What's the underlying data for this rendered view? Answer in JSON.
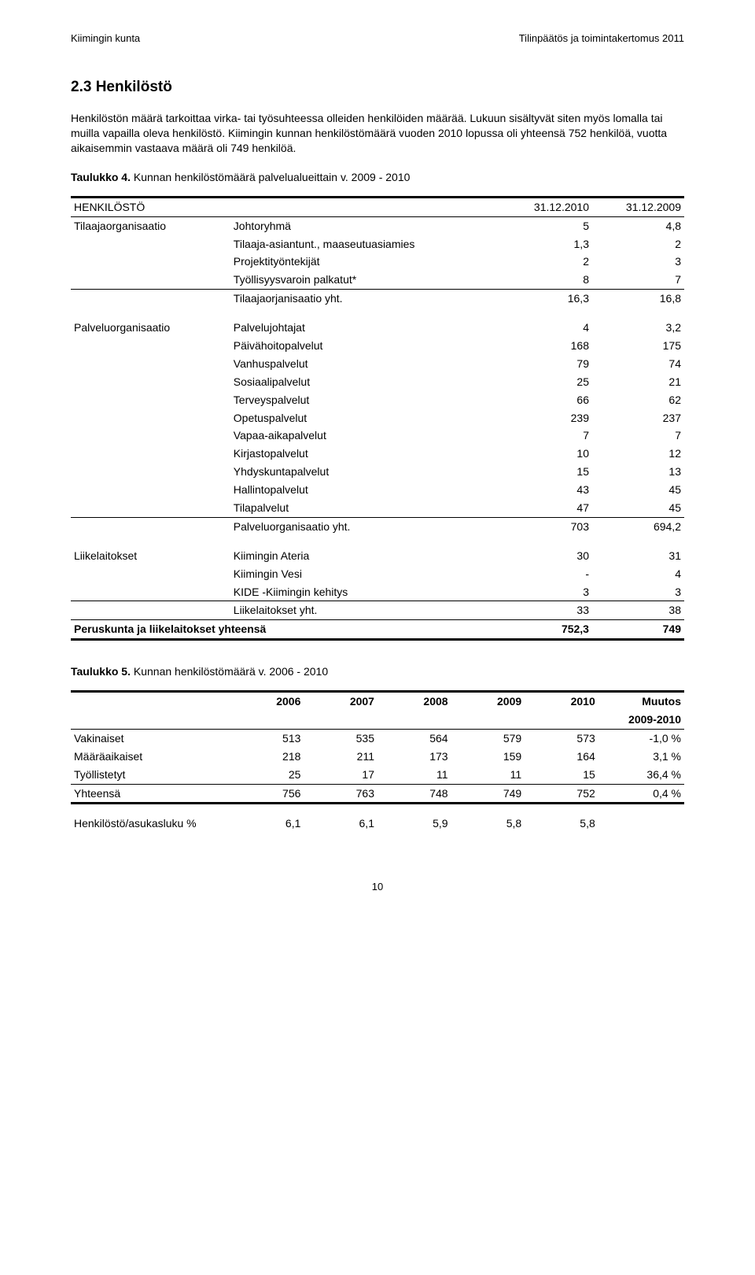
{
  "header": {
    "left": "Kiimingin kunta",
    "right": "Tilinpäätös ja toimintakertomus 2011"
  },
  "heading": "2.3 Henkilöstö",
  "paragraph": "Henkilöstön määrä tarkoittaa virka- tai työsuhteessa olleiden henkilöiden määrää. Lukuun sisältyvät siten myös lomalla tai muilla vapailla oleva henkilöstö. Kiimingin kunnan henkilöstömäärä vuoden 2010 lopussa oli yhteensä 752 henkilöä, vuotta aikaisemmin vastaava määrä oli 749 henkilöä.",
  "table4": {
    "caption_bold": "Taulukko 4.",
    "caption_rest": "Kunnan henkilöstömäärä palvelualueittain v. 2009 - 2010",
    "head": {
      "h0": "HENKILÖSTÖ",
      "h1": "31.12.2010",
      "h2": "31.12.2009"
    },
    "groups": {
      "g1": {
        "label": "Tilaajaorganisaatio",
        "rows": [
          {
            "name": "Johtoryhmä",
            "v1": "5",
            "v2": "4,8"
          },
          {
            "name": "Tilaaja-asiantunt., maaseutuasiamies",
            "v1": "1,3",
            "v2": "2"
          },
          {
            "name": "Projektityöntekijät",
            "v1": "2",
            "v2": "3"
          },
          {
            "name": "Työllisyysvaroin palkatut*",
            "v1": "8",
            "v2": "7"
          }
        ],
        "total": {
          "name": "Tilaajaorjanisaatio yht.",
          "v1": "16,3",
          "v2": "16,8"
        }
      },
      "g2": {
        "label": "Palveluorganisaatio",
        "rows": [
          {
            "name": "Palvelujohtajat",
            "v1": "4",
            "v2": "3,2"
          },
          {
            "name": "Päivähoitopalvelut",
            "v1": "168",
            "v2": "175"
          },
          {
            "name": "Vanhuspalvelut",
            "v1": "79",
            "v2": "74"
          },
          {
            "name": "Sosiaalipalvelut",
            "v1": "25",
            "v2": "21"
          },
          {
            "name": "Terveyspalvelut",
            "v1": "66",
            "v2": "62"
          },
          {
            "name": "Opetuspalvelut",
            "v1": "239",
            "v2": "237"
          },
          {
            "name": "Vapaa-aikapalvelut",
            "v1": "7",
            "v2": "7"
          },
          {
            "name": "Kirjastopalvelut",
            "v1": "10",
            "v2": "12"
          },
          {
            "name": "Yhdyskuntapalvelut",
            "v1": "15",
            "v2": "13"
          },
          {
            "name": "Hallintopalvelut",
            "v1": "43",
            "v2": "45"
          },
          {
            "name": "Tilapalvelut",
            "v1": "47",
            "v2": "45"
          }
        ],
        "total": {
          "name": "Palveluorganisaatio yht.",
          "v1": "703",
          "v2": "694,2"
        }
      },
      "g3": {
        "label": "Liikelaitokset",
        "rows": [
          {
            "name": "Kiimingin Ateria",
            "v1": "30",
            "v2": "31"
          },
          {
            "name": "Kiimingin Vesi",
            "v1": "-",
            "v2": "4"
          },
          {
            "name": "KIDE -Kiimingin kehitys",
            "v1": "3",
            "v2": "3"
          }
        ],
        "total": {
          "name": "Liikelaitokset yht.",
          "v1": "33",
          "v2": "38"
        }
      }
    },
    "grand": {
      "name": "Peruskunta ja liikelaitokset yhteensä",
      "v1": "752,3",
      "v2": "749"
    }
  },
  "table5": {
    "caption_bold": "Taulukko 5.",
    "caption_rest": "Kunnan henkilöstömäärä v. 2006 - 2010",
    "headers": [
      "2006",
      "2007",
      "2008",
      "2009",
      "2010",
      "Muutos"
    ],
    "subhead": "2009-2010",
    "rows": [
      {
        "label": "Vakinaiset",
        "v": [
          "513",
          "535",
          "564",
          "579",
          "573",
          "-1,0 %"
        ]
      },
      {
        "label": "Määräaikaiset",
        "v": [
          "218",
          "211",
          "173",
          "159",
          "164",
          "3,1 %"
        ]
      },
      {
        "label": "Työllistetyt",
        "v": [
          "25",
          "17",
          "11",
          "11",
          "15",
          "36,4 %"
        ]
      }
    ],
    "total": {
      "label": "Yhteensä",
      "v": [
        "756",
        "763",
        "748",
        "749",
        "752",
        "0,4 %"
      ]
    },
    "footer": {
      "label": "Henkilöstö/asukasluku %",
      "v": [
        "6,1",
        "6,1",
        "5,9",
        "5,8",
        "5,8",
        ""
      ]
    }
  },
  "page_number": "10"
}
